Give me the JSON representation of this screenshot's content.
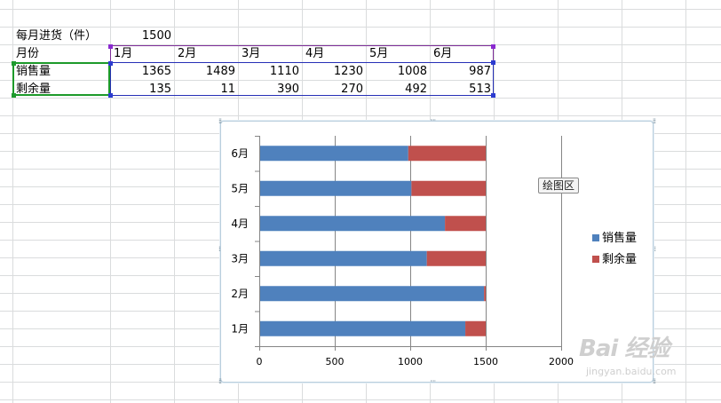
{
  "sheet": {
    "purchase_label": "每月进货（件）",
    "purchase_value": "1500",
    "month_header": "月份",
    "months": [
      "1月",
      "2月",
      "3月",
      "4月",
      "5月",
      "6月"
    ],
    "rows": [
      {
        "label": "销售量",
        "values": [
          "1365",
          "1489",
          "1110",
          "1230",
          "1008",
          "987"
        ]
      },
      {
        "label": "剩余量",
        "values": [
          "135",
          "11",
          "390",
          "270",
          "492",
          "513"
        ]
      }
    ]
  },
  "colors": {
    "series_sales": "#4f81bd",
    "series_remain": "#c0504d",
    "gridline": "#dadcdd",
    "selection_border": "#7e2d99"
  },
  "tooltip": {
    "text": "绘图区"
  },
  "watermark": {
    "logo": "Bai 经验",
    "url": "jingyan.baidu.com"
  },
  "chart_data": {
    "type": "bar",
    "orientation": "horizontal",
    "stacked": true,
    "categories": [
      "1月",
      "2月",
      "3月",
      "4月",
      "5月",
      "6月"
    ],
    "series": [
      {
        "name": "销售量",
        "values": [
          1365,
          1489,
          1110,
          1230,
          1008,
          987
        ]
      },
      {
        "name": "剩余量",
        "values": [
          135,
          11,
          390,
          270,
          492,
          513
        ]
      }
    ],
    "xlim": [
      0,
      2000
    ],
    "xticks": [
      0,
      500,
      1000,
      1500,
      2000
    ],
    "grid": true,
    "legend": "right"
  }
}
